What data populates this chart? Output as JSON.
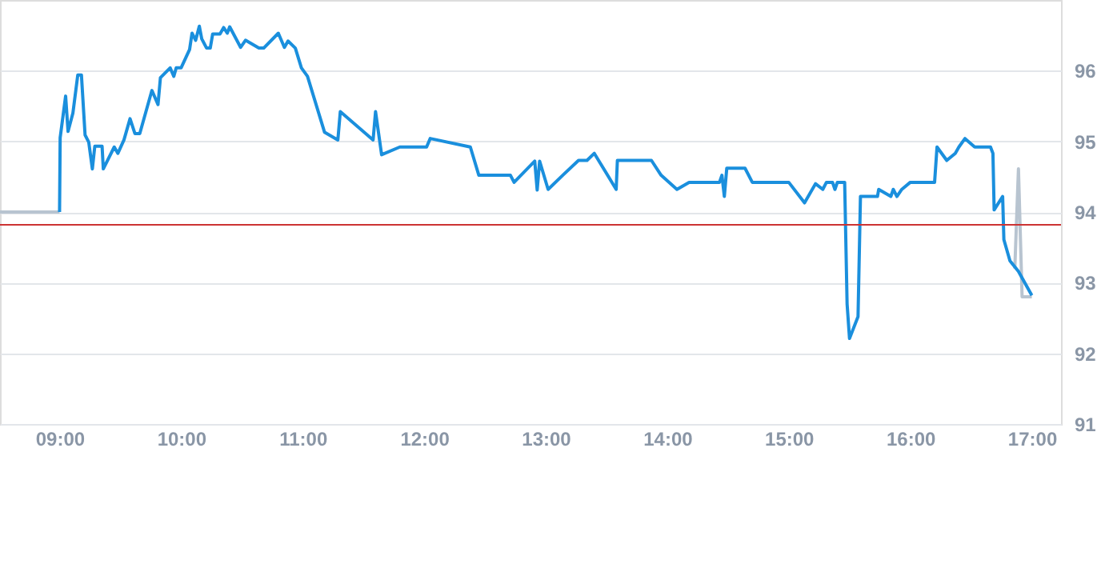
{
  "chart_data": {
    "type": "line",
    "xlim": [
      8.51,
      17.24
    ],
    "ylim": [
      91,
      97
    ],
    "xticks": [
      {
        "value": 9,
        "label": "09:00"
      },
      {
        "value": 10,
        "label": "10:00"
      },
      {
        "value": 11,
        "label": "11:00"
      },
      {
        "value": 12,
        "label": "12:00"
      },
      {
        "value": 13,
        "label": "13:00"
      },
      {
        "value": 14,
        "label": "14:00"
      },
      {
        "value": 15,
        "label": "15:00"
      },
      {
        "value": 16,
        "label": "16:00"
      },
      {
        "value": 17,
        "label": "17:00"
      }
    ],
    "yticks": [
      91,
      92,
      93,
      94,
      95,
      96
    ],
    "grid": "y",
    "series": [
      {
        "color": "#b8c4d0",
        "x": [
          8.51,
          9.0
        ],
        "values": [
          94.0,
          94.0
        ]
      },
      {
        "color": "#b8c4d0",
        "x": [
          16.86,
          16.89,
          16.92,
          17.0
        ],
        "values": [
          93.2,
          94.61,
          92.8,
          92.8
        ]
      },
      {
        "color": "#1a8fdd",
        "x": [
          9.0,
          9.005,
          9.05,
          9.07,
          9.11,
          9.15,
          9.18,
          9.21,
          9.24,
          9.27,
          9.29,
          9.35,
          9.36,
          9.45,
          9.48,
          9.53,
          9.58,
          9.62,
          9.66,
          9.76,
          9.81,
          9.83,
          9.91,
          9.94,
          9.96,
          10.0,
          10.07,
          10.09,
          10.12,
          10.15,
          10.17,
          10.21,
          10.24,
          10.26,
          10.32,
          10.35,
          10.38,
          10.4,
          10.49,
          10.53,
          10.64,
          10.68,
          10.8,
          10.85,
          10.88,
          10.94,
          10.99,
          11.04,
          11.18,
          11.29,
          11.31,
          11.58,
          11.6,
          11.65,
          11.8,
          12.02,
          12.05,
          12.38,
          12.45,
          12.71,
          12.74,
          12.91,
          12.93,
          12.95,
          13.02,
          13.14,
          13.27,
          13.34,
          13.4,
          13.58,
          13.59,
          13.87,
          13.95,
          14.08,
          14.18,
          14.43,
          14.45,
          14.47,
          14.49,
          14.64,
          14.7,
          15.0,
          15.13,
          15.22,
          15.28,
          15.31,
          15.36,
          15.38,
          15.4,
          15.46,
          15.48,
          15.5,
          15.57,
          15.59,
          15.73,
          15.74,
          15.84,
          15.86,
          15.89,
          15.93,
          16.0,
          16.2,
          16.22,
          16.3,
          16.37,
          16.4,
          16.45,
          16.53,
          16.66,
          16.68,
          16.69,
          16.76,
          16.77,
          16.82,
          16.89,
          17.0
        ],
        "values": [
          94.0,
          95.05,
          95.64,
          95.14,
          95.4,
          95.94,
          95.94,
          95.09,
          94.99,
          94.61,
          94.93,
          94.93,
          94.61,
          94.92,
          94.83,
          95.02,
          95.32,
          95.11,
          95.11,
          95.72,
          95.52,
          95.9,
          96.04,
          95.92,
          96.04,
          96.04,
          96.3,
          96.53,
          96.43,
          96.63,
          96.45,
          96.32,
          96.32,
          96.52,
          96.52,
          96.61,
          96.53,
          96.62,
          96.33,
          96.43,
          96.32,
          96.32,
          96.53,
          96.33,
          96.42,
          96.32,
          96.04,
          95.92,
          95.13,
          95.02,
          95.42,
          95.02,
          95.42,
          94.81,
          94.92,
          94.92,
          95.04,
          94.92,
          94.52,
          94.52,
          94.42,
          94.72,
          94.31,
          94.72,
          94.32,
          94.52,
          94.73,
          94.73,
          94.83,
          94.32,
          94.73,
          94.73,
          94.52,
          94.32,
          94.42,
          94.42,
          94.52,
          94.22,
          94.62,
          94.62,
          94.42,
          94.42,
          94.13,
          94.4,
          94.32,
          94.42,
          94.42,
          94.32,
          94.42,
          94.42,
          92.7,
          92.21,
          92.52,
          94.22,
          94.22,
          94.32,
          94.22,
          94.32,
          94.22,
          94.32,
          94.42,
          94.42,
          94.92,
          94.73,
          94.83,
          94.92,
          95.04,
          94.92,
          94.92,
          94.83,
          94.03,
          94.22,
          93.61,
          93.31,
          93.16,
          92.82
        ]
      }
    ],
    "ref_lines": [
      {
        "axis": "y",
        "value": 93.82,
        "color": "#cc3333"
      }
    ]
  }
}
